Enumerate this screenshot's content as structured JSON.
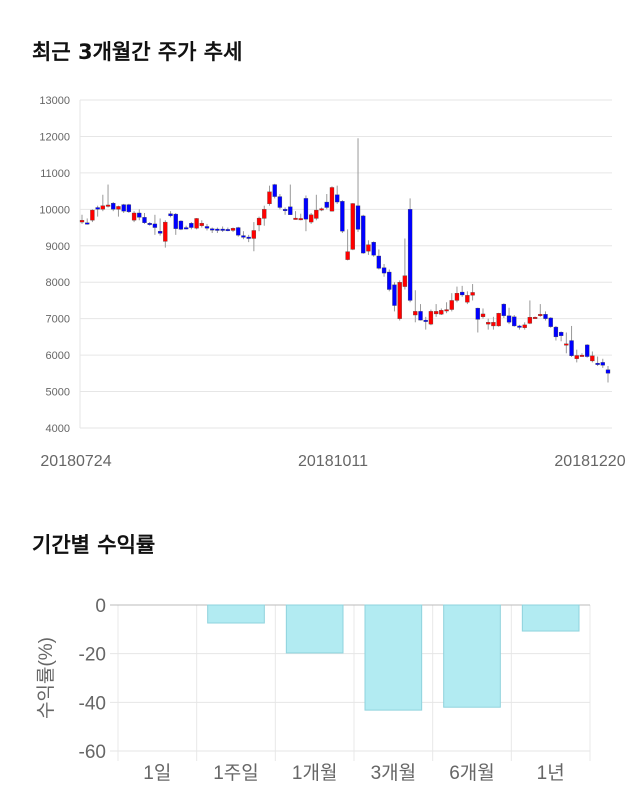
{
  "price_section": {
    "title": "최근 3개월간 주가 추세"
  },
  "return_section": {
    "title": "기간별 수익률"
  },
  "chart_data": [
    {
      "type": "candlestick",
      "title": "최근 3개월간 주가 추세",
      "ylim": [
        4000,
        13000
      ],
      "yticks": [
        4000,
        5000,
        6000,
        7000,
        8000,
        9000,
        10000,
        11000,
        12000,
        13000
      ],
      "xtick_labels": [
        "20180724",
        "20181011",
        "20181220"
      ],
      "grid": true,
      "colors": {
        "up": "#ff0000",
        "down": "#0000ff",
        "wick": "#999999"
      },
      "ohlc": [
        [
          9650,
          9850,
          9600,
          9700
        ],
        [
          9630,
          9750,
          9580,
          9620
        ],
        [
          9700,
          10000,
          9650,
          9980
        ],
        [
          10050,
          10100,
          9800,
          10000
        ],
        [
          10000,
          10400,
          9950,
          10100
        ],
        [
          10100,
          10680,
          10050,
          10120
        ],
        [
          10170,
          10200,
          9950,
          10000
        ],
        [
          10000,
          10100,
          9800,
          10080
        ],
        [
          10130,
          10150,
          9900,
          9950
        ],
        [
          10130,
          10150,
          9900,
          9930
        ],
        [
          9700,
          9950,
          9650,
          9900
        ],
        [
          9900,
          10000,
          9700,
          9780
        ],
        [
          9780,
          9900,
          9600,
          9630
        ],
        [
          9620,
          9650,
          9550,
          9600
        ],
        [
          9600,
          9850,
          9300,
          9500
        ],
        [
          9400,
          9750,
          9280,
          9340
        ],
        [
          9120,
          9700,
          8950,
          9650
        ],
        [
          9880,
          9950,
          9780,
          9820
        ],
        [
          9870,
          9900,
          9300,
          9470
        ],
        [
          9680,
          9700,
          9430,
          9450
        ],
        [
          9500,
          9550,
          9450,
          9480
        ],
        [
          9620,
          9650,
          9450,
          9500
        ],
        [
          9480,
          9760,
          9450,
          9750
        ],
        [
          9550,
          9700,
          9500,
          9620
        ],
        [
          9530,
          9600,
          9420,
          9480
        ],
        [
          9470,
          9500,
          9350,
          9460
        ],
        [
          9460,
          9500,
          9350,
          9450
        ],
        [
          9460,
          9530,
          9380,
          9430
        ],
        [
          9450,
          9500,
          9400,
          9430
        ],
        [
          9420,
          9500,
          9380,
          9480
        ],
        [
          9500,
          9520,
          9250,
          9290
        ],
        [
          9280,
          9400,
          9180,
          9230
        ],
        [
          9240,
          9300,
          9100,
          9200
        ],
        [
          9200,
          9650,
          8850,
          9420
        ],
        [
          9570,
          9800,
          9400,
          9760
        ],
        [
          9750,
          10100,
          9550,
          10000
        ],
        [
          10150,
          10650,
          10100,
          10480
        ],
        [
          10680,
          10700,
          10300,
          10350
        ],
        [
          10350,
          10420,
          10000,
          10050
        ],
        [
          10000,
          10050,
          9850,
          9970
        ],
        [
          10070,
          10680,
          9850,
          9850
        ],
        [
          9760,
          9950,
          9720,
          9760
        ],
        [
          9750,
          9880,
          9700,
          9750
        ],
        [
          10300,
          10380,
          9400,
          9730
        ],
        [
          9650,
          9900,
          9600,
          9850
        ],
        [
          9750,
          10400,
          9700,
          9980
        ],
        [
          10020,
          10050,
          9950,
          10020
        ],
        [
          10200,
          10420,
          10000,
          10050
        ],
        [
          9950,
          10630,
          9940,
          10600
        ],
        [
          10400,
          10650,
          10150,
          10200
        ],
        [
          10220,
          10250,
          9350,
          9400
        ],
        [
          8620,
          9450,
          8600,
          8840
        ],
        [
          8900,
          10170,
          8880,
          10160
        ],
        [
          10100,
          11950,
          9380,
          9450
        ],
        [
          9820,
          9850,
          8780,
          8800
        ],
        [
          8850,
          9150,
          8750,
          9030
        ],
        [
          9100,
          9120,
          8700,
          8740
        ],
        [
          8720,
          8900,
          8350,
          8380
        ],
        [
          8400,
          8500,
          8150,
          8250
        ],
        [
          8280,
          8350,
          7750,
          7800
        ],
        [
          7930,
          8000,
          7200,
          7360
        ],
        [
          7000,
          8050,
          6950,
          8000
        ],
        [
          7880,
          9200,
          7800,
          8180
        ],
        [
          10000,
          10300,
          7450,
          7500
        ],
        [
          7100,
          7780,
          6900,
          7200
        ],
        [
          7200,
          7400,
          6950,
          6960
        ],
        [
          6960,
          7050,
          6700,
          6920
        ],
        [
          6850,
          7250,
          6820,
          7200
        ],
        [
          7130,
          7400,
          7050,
          7200
        ],
        [
          7120,
          7280,
          7100,
          7230
        ],
        [
          7250,
          7450,
          7150,
          7250
        ],
        [
          7250,
          7700,
          7200,
          7500
        ],
        [
          7500,
          7880,
          7450,
          7700
        ],
        [
          7730,
          7900,
          7600,
          7650
        ],
        [
          7450,
          7750,
          7400,
          7640
        ],
        [
          7640,
          7950,
          7500,
          7720
        ],
        [
          7290,
          7300,
          6620,
          6980
        ],
        [
          7050,
          7280,
          7000,
          7130
        ],
        [
          6850,
          7000,
          6700,
          6900
        ],
        [
          6800,
          7050,
          6700,
          6900
        ],
        [
          6800,
          7160,
          6780,
          7150
        ],
        [
          7400,
          7420,
          7020,
          7080
        ],
        [
          7080,
          7300,
          6850,
          6900
        ],
        [
          7050,
          7100,
          6780,
          6800
        ],
        [
          6800,
          6830,
          6700,
          6770
        ],
        [
          6750,
          6900,
          6700,
          6830
        ],
        [
          6870,
          7500,
          6850,
          7040
        ],
        [
          7040,
          7060,
          7020,
          7040
        ],
        [
          7080,
          7400,
          7050,
          7120
        ],
        [
          7120,
          7200,
          6950,
          7000
        ],
        [
          7020,
          7040,
          6750,
          6780
        ],
        [
          6770,
          6800,
          6400,
          6500
        ],
        [
          6630,
          6650,
          6380,
          6530
        ],
        [
          6300,
          6620,
          6050,
          6310
        ],
        [
          6400,
          6800,
          5950,
          5980
        ],
        [
          5900,
          6150,
          5800,
          5990
        ],
        [
          6000,
          6050,
          5980,
          6000
        ],
        [
          6280,
          6300,
          5930,
          5960
        ],
        [
          5840,
          6100,
          5800,
          5980
        ],
        [
          5780,
          5960,
          5700,
          5750
        ],
        [
          5800,
          5900,
          5650,
          5720
        ],
        [
          5600,
          5700,
          5250,
          5500
        ]
      ]
    },
    {
      "type": "bar",
      "title": "기간별 수익률",
      "ylabel": "수익률(%)",
      "categories": [
        "1일",
        "1주일",
        "1개월",
        "3개월",
        "6개월",
        "1년"
      ],
      "values": [
        0,
        -7.4,
        -19.7,
        -43.2,
        -42.0,
        -10.7
      ],
      "ylim": [
        -60,
        0
      ],
      "yticks": [
        0,
        -20,
        -40,
        -60
      ],
      "grid": true,
      "colors": {
        "bar": "#b2ebf2",
        "bar_border": "#8fd3dd"
      }
    }
  ]
}
